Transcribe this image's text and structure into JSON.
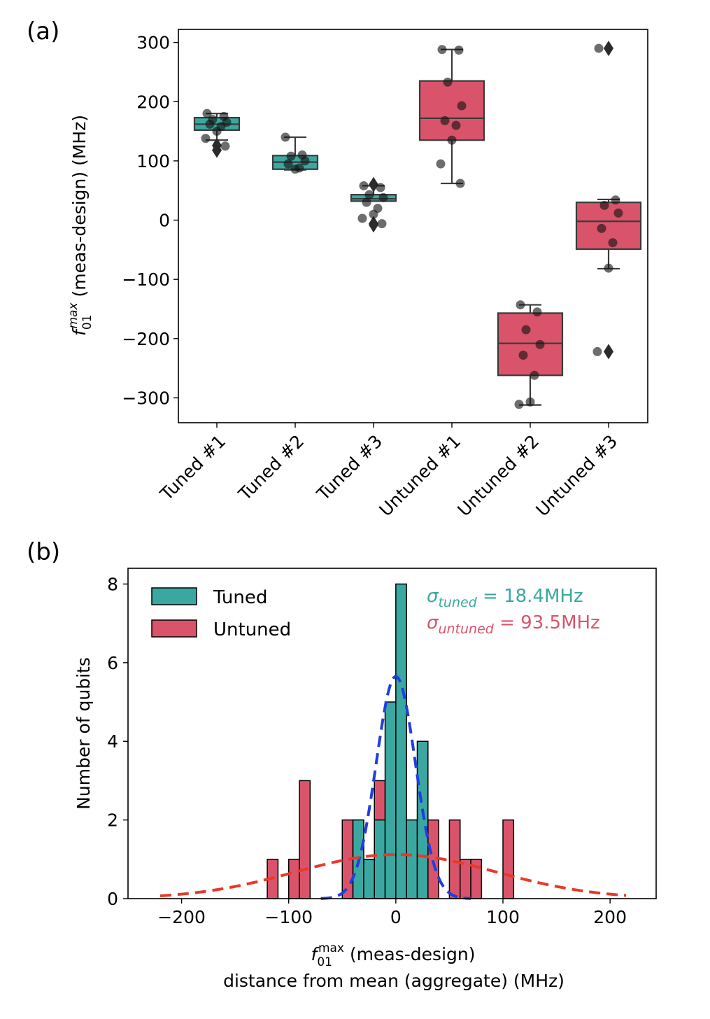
{
  "chart_data": [
    {
      "panel": "(a)",
      "type": "box",
      "ylabel_main": "f",
      "ylabel_sub": "01",
      "ylabel_sup": "max",
      "ylabel_rest": " (meas-design) (MHz)",
      "ylim": [
        -342,
        322
      ],
      "yticks": [
        300,
        200,
        100,
        0,
        -100,
        -200,
        -300
      ],
      "ytick_labels": [
        "300",
        "200",
        "100",
        "0",
        "−100",
        "−200",
        "−300"
      ],
      "categories": [
        "Tuned #1",
        "Tuned #2",
        "Tuned #3",
        "Untuned #1",
        "Untuned #2",
        "Untuned #3"
      ],
      "colors": {
        "tuned": "#3aa8a0",
        "untuned": "#d9546b"
      },
      "boxes": [
        {
          "group": "tuned",
          "whislo": 135,
          "q1": 152,
          "median": 162,
          "q3": 173,
          "whishi": 180,
          "outliers": [
            118,
            126
          ],
          "points": [
            180,
            175,
            170,
            165,
            162,
            158,
            150,
            138,
            125
          ]
        },
        {
          "group": "tuned",
          "whislo": 85,
          "q1": 86,
          "median": 98,
          "q3": 109,
          "whishi": 140,
          "outliers": [],
          "points": [
            140,
            110,
            108,
            100,
            95,
            88,
            86
          ]
        },
        {
          "group": "tuned",
          "whislo": 32,
          "q1": 32,
          "median": 36,
          "q3": 43,
          "whishi": 58,
          "outliers": [
            -6,
            -8,
            60
          ],
          "points": [
            58,
            55,
            43,
            38,
            30,
            20,
            10,
            3,
            -6
          ]
        },
        {
          "group": "untuned",
          "whislo": 62,
          "q1": 135,
          "median": 172,
          "q3": 235,
          "whishi": 288,
          "outliers": [],
          "points": [
            288,
            287,
            233,
            193,
            168,
            160,
            135,
            95,
            62
          ]
        },
        {
          "group": "untuned",
          "whislo": -312,
          "q1": -262,
          "median": -208,
          "q3": -157,
          "whishi": -143,
          "outliers": [],
          "points": [
            -143,
            -155,
            -185,
            -210,
            -228,
            -262,
            -307,
            -311
          ]
        },
        {
          "group": "untuned",
          "whislo": -82,
          "q1": -49,
          "median": -2,
          "q3": 30,
          "whishi": 35,
          "outliers": [
            290,
            -222
          ],
          "points": [
            290,
            34,
            25,
            12,
            -14,
            -38,
            -81,
            -222
          ]
        }
      ]
    },
    {
      "panel": "(b)",
      "type": "histogram",
      "ylabel": "Number of qubits",
      "xlabel_main": "f",
      "xlabel_sub": "01",
      "xlabel_sup": "max",
      "xlabel_rest": " (meas-design)",
      "xlabel_line2": "distance from mean (aggregate) (MHz)",
      "xlim": [
        -250,
        243
      ],
      "ylim": [
        0,
        8.4
      ],
      "xticks": [
        -200,
        -100,
        0,
        100,
        200
      ],
      "xtick_labels": [
        "−200",
        "−100",
        "0",
        "100",
        "200"
      ],
      "yticks": [
        0,
        2,
        4,
        6,
        8
      ],
      "ytick_labels": [
        "0",
        "2",
        "4",
        "6",
        "8"
      ],
      "bin_width": 10,
      "legend": [
        {
          "label": "Tuned",
          "color": "#3aa8a0"
        },
        {
          "label": "Untuned",
          "color": "#d9546b"
        }
      ],
      "sigma_tuned": {
        "symbol": "σ",
        "subscript": "tuned",
        "value": " = 18.4MHz",
        "color": "#3aa8a0"
      },
      "sigma_untuned": {
        "symbol": "σ",
        "subscript": "untuned",
        "value": " = 93.5MHz",
        "color": "#d9546b"
      },
      "tuned_bins": [
        {
          "left": -40,
          "count": 2
        },
        {
          "left": -30,
          "count": 1
        },
        {
          "left": -20,
          "count": 2
        },
        {
          "left": -10,
          "count": 5
        },
        {
          "left": 0,
          "count": 8
        },
        {
          "left": 10,
          "count": 2
        },
        {
          "left": 20,
          "count": 4
        }
      ],
      "untuned_bins": [
        {
          "left": -120,
          "count": 1
        },
        {
          "left": -100,
          "count": 1
        },
        {
          "left": -90,
          "count": 3
        },
        {
          "left": -50,
          "count": 2
        },
        {
          "left": -40,
          "count": 2
        },
        {
          "left": -30,
          "count": 1
        },
        {
          "left": -20,
          "count": 3
        },
        {
          "left": -10,
          "count": 2
        },
        {
          "left": 0,
          "count": 1
        },
        {
          "left": 10,
          "count": 2
        },
        {
          "left": 20,
          "count": 1
        },
        {
          "left": 30,
          "count": 2
        },
        {
          "left": 50,
          "count": 2
        },
        {
          "left": 60,
          "count": 1
        },
        {
          "left": 70,
          "count": 1
        },
        {
          "left": 100,
          "count": 2
        }
      ],
      "fits": [
        {
          "name": "tuned-fit",
          "mu": 0,
          "sigma": 18.4,
          "peak": 5.65,
          "range": [
            -70,
            70
          ],
          "color": "#1f3fe0"
        },
        {
          "name": "untuned-fit",
          "mu": 0,
          "sigma": 93.5,
          "peak": 1.12,
          "range": [
            -220,
            215
          ],
          "color": "#e8392a"
        }
      ]
    }
  ]
}
